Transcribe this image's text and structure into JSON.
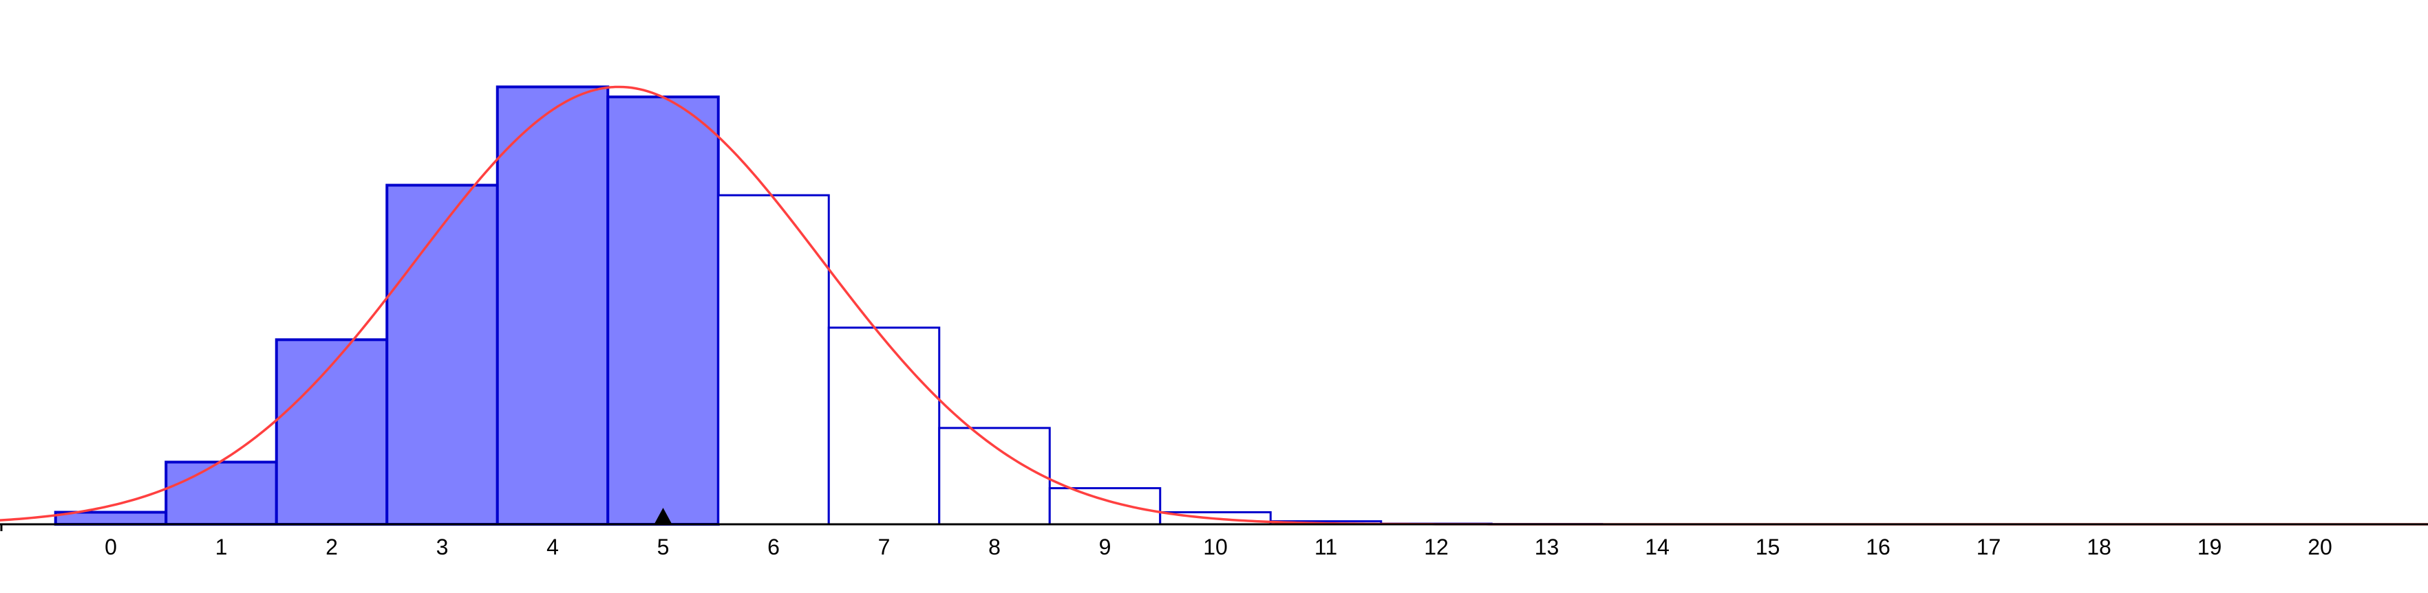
{
  "chart_data": {
    "type": "bar",
    "title": "",
    "xlabel": "",
    "ylabel": "",
    "x_tick_labels": [
      "0",
      "1",
      "2",
      "3",
      "4",
      "5",
      "6",
      "7",
      "8",
      "9",
      "10",
      "11",
      "12",
      "13",
      "14",
      "15",
      "16",
      "17",
      "18",
      "19",
      "20"
    ],
    "categories": [
      "0",
      "1",
      "2",
      "3",
      "4",
      "5",
      "6",
      "7",
      "8",
      "9",
      "10",
      "11",
      "12",
      "13",
      "14",
      "15",
      "16",
      "17",
      "18",
      "19",
      "20"
    ],
    "values": [
      0.006,
      0.031,
      0.092,
      0.169,
      0.218,
      0.213,
      0.164,
      0.098,
      0.048,
      0.018,
      0.006,
      0.0015,
      0.0003,
      0.0001,
      0,
      0,
      0,
      0,
      0,
      0,
      0
    ],
    "highlighted_range": [
      0,
      5
    ],
    "xlim": [
      -1,
      21
    ],
    "ylim": [
      0,
      0.25
    ],
    "marker_x": 5,
    "normal_curve": {
      "mean": 4.6,
      "sd": 1.83
    },
    "grid": false,
    "colors": {
      "bar_fill_highlighted": "#8080ff",
      "bar_stroke": "#0000cc",
      "bar_fill_other": "#ffffff",
      "curve": "#ff4040",
      "axis": "#000000"
    }
  }
}
